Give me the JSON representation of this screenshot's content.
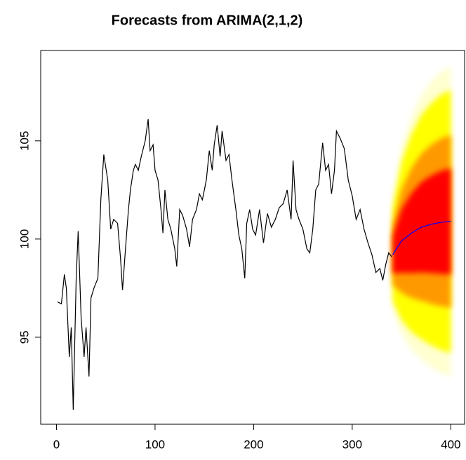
{
  "chart_data": {
    "type": "line",
    "title": "Forecasts from ARIMA(2,1,2)",
    "xlim": [
      -16,
      414
    ],
    "ylim": [
      90.57,
      109.6
    ],
    "xticks": [
      0,
      100,
      200,
      300,
      400
    ],
    "yticks": [
      95,
      100,
      105
    ],
    "series": [
      {
        "color": "#000000",
        "x": [
          1,
          5,
          8,
          10,
          13,
          15,
          17,
          20,
          22,
          25,
          28,
          30,
          33,
          35,
          38,
          42,
          45,
          48,
          52,
          55,
          58,
          62,
          65,
          67,
          70,
          73,
          75,
          78,
          80,
          83,
          86,
          90,
          93,
          95,
          98,
          100,
          103,
          106,
          108,
          110,
          113,
          116,
          120,
          122,
          125,
          128,
          132,
          135,
          138,
          142,
          145,
          148,
          152,
          155,
          158,
          160,
          163,
          166,
          168,
          172,
          175,
          178,
          182,
          185,
          188,
          191,
          193,
          196,
          199,
          202,
          206,
          210,
          214,
          218,
          222,
          226,
          230,
          234,
          238,
          240,
          243,
          246,
          250,
          254,
          257,
          260,
          263,
          266,
          270,
          273,
          276,
          279,
          282,
          284,
          288,
          292,
          296,
          300,
          304,
          308,
          312,
          316,
          320,
          324,
          328,
          331,
          334,
          337,
          340
        ],
        "values": [
          96.8,
          96.7,
          98.2,
          97.5,
          94,
          95.5,
          91.3,
          98,
          100.4,
          96,
          94,
          95.5,
          93,
          97,
          97.5,
          98,
          102,
          104.3,
          103,
          100.5,
          101,
          100.8,
          99,
          97.4,
          99.5,
          101.5,
          102.5,
          103.5,
          103.8,
          103.5,
          104.2,
          105,
          106.1,
          104.5,
          104.8,
          103.5,
          103,
          101.5,
          100.3,
          102.5,
          101,
          100.5,
          99.5,
          98.6,
          101.5,
          101.2,
          100.5,
          99.6,
          101,
          101.5,
          102.3,
          102,
          103,
          104.5,
          103.5,
          104.8,
          105.8,
          104.2,
          105.5,
          104,
          104.3,
          103,
          101.5,
          100.2,
          99.5,
          98,
          100.8,
          101.5,
          100.5,
          100.2,
          101.5,
          99.8,
          101.3,
          100.6,
          101,
          101.6,
          101.8,
          102.5,
          101,
          104,
          101.5,
          101,
          100.5,
          99.5,
          99.3,
          100.5,
          102.5,
          102.8,
          104.9,
          103.5,
          103.8,
          102.3,
          103.5,
          105.5,
          105.1,
          104.6,
          103,
          102.2,
          101,
          101.5,
          100.5,
          99.8,
          99.2,
          98.3,
          98.5,
          97.9,
          98.7,
          99.3,
          99.1
        ]
      },
      {
        "color": "#0000ff",
        "x": [
          341,
          350,
          360,
          370,
          380,
          390,
          400
        ],
        "values": [
          99.2,
          99.9,
          100.3,
          100.6,
          100.75,
          100.85,
          100.9
        ]
      }
    ],
    "intervals": [
      {
        "color": "#ffffd0",
        "lower": [
          96.43,
          95.16,
          94.37,
          93.88,
          93.48,
          93.19,
          93.0
        ],
        "upper": [
          101.97,
          104.64,
          106.23,
          107.32,
          108.02,
          108.51,
          108.8
        ]
      },
      {
        "color": "#ffff00",
        "lower": [
          96.85,
          95.88,
          95.27,
          94.9,
          94.59,
          94.35,
          94.2
        ],
        "upper": [
          101.55,
          103.92,
          105.33,
          106.3,
          106.91,
          107.35,
          107.6
        ]
      },
      {
        "color": "#ff9900",
        "lower": [
          97.66,
          97.26,
          97.0,
          96.86,
          96.7,
          96.58,
          96.5
        ],
        "upper": [
          100.74,
          102.54,
          103.6,
          104.34,
          104.8,
          105.12,
          105.3
        ]
      },
      {
        "color": "#ff0000",
        "lower": [
          98.25,
          98.28,
          98.27,
          98.3,
          98.27,
          98.23,
          98.2
        ],
        "upper": [
          100.15,
          101.52,
          102.33,
          102.9,
          103.23,
          103.47,
          103.6
        ]
      }
    ]
  }
}
